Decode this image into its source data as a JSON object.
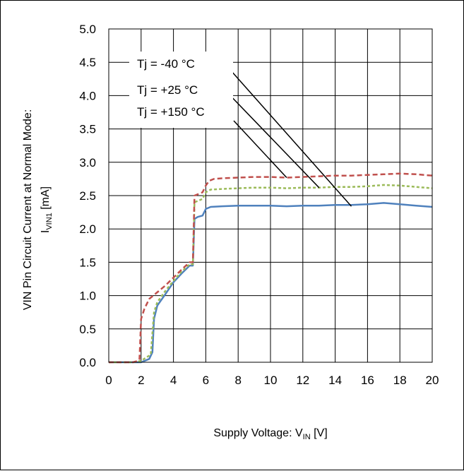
{
  "chart_data": {
    "type": "line",
    "xlabel": "Supply Voltage: V",
    "xlabel_sub": "IN",
    "xlabel_tail": " [V]",
    "ylabel_line1": "VIN Pin Circuit Current at Normal Mode:",
    "ylabel_line2": "I",
    "ylabel_sub": "VIN1",
    "ylabel_tail": " [mA]",
    "xlim": [
      0,
      20
    ],
    "ylim": [
      0.0,
      5.0
    ],
    "x_ticks": [
      "0",
      "2",
      "4",
      "6",
      "8",
      "10",
      "12",
      "14",
      "16",
      "18",
      "20"
    ],
    "y_ticks": [
      "0.0",
      "0.5",
      "1.0",
      "1.5",
      "2.0",
      "2.5",
      "3.0",
      "3.5",
      "4.0",
      "4.5",
      "5.0"
    ],
    "grid": true,
    "legend_placement": "top-left",
    "series": [
      {
        "name": "Tj = -40 °C",
        "color": "#4f81bd",
        "style": "solid",
        "annotation_target": [
          15.0,
          2.34
        ],
        "x": [
          0,
          1.5,
          2.0,
          2.3,
          2.5,
          2.7,
          2.8,
          3.0,
          3.5,
          4.0,
          4.5,
          5.0,
          5.2,
          5.3,
          5.5,
          5.8,
          6.0,
          6.3,
          7,
          8,
          9,
          10,
          11,
          12,
          13,
          14,
          15,
          16,
          17,
          18,
          19,
          20
        ],
        "y": [
          0,
          0,
          0,
          0.03,
          0.05,
          0.15,
          0.65,
          0.85,
          1.02,
          1.2,
          1.33,
          1.45,
          1.45,
          2.15,
          2.18,
          2.2,
          2.3,
          2.33,
          2.34,
          2.35,
          2.35,
          2.35,
          2.34,
          2.35,
          2.35,
          2.36,
          2.36,
          2.37,
          2.39,
          2.37,
          2.35,
          2.33
        ]
      },
      {
        "name": "Tj = +25 °C",
        "color": "#9bbb59",
        "style": "dashed",
        "annotation_target": [
          13.0,
          2.62
        ],
        "x": [
          0,
          1.5,
          2.0,
          2.3,
          2.5,
          2.6,
          2.8,
          3.0,
          3.5,
          4.0,
          4.5,
          5.0,
          5.2,
          5.3,
          5.5,
          5.8,
          6.0,
          6.3,
          7,
          8,
          9,
          10,
          11,
          12,
          13,
          14,
          15,
          16,
          17,
          18,
          19,
          20
        ],
        "y": [
          0,
          0,
          0.02,
          0.07,
          0.1,
          0.12,
          0.75,
          0.9,
          1.07,
          1.22,
          1.36,
          1.47,
          1.47,
          2.4,
          2.42,
          2.45,
          2.55,
          2.59,
          2.6,
          2.61,
          2.62,
          2.62,
          2.61,
          2.62,
          2.62,
          2.63,
          2.63,
          2.64,
          2.66,
          2.65,
          2.63,
          2.61
        ]
      },
      {
        "name": "Tj = +150 °C",
        "color": "#c0504d",
        "style": "dashed",
        "annotation_target": [
          11.0,
          2.77
        ],
        "x": [
          0,
          1.5,
          1.8,
          1.9,
          2.0,
          2.2,
          2.5,
          3.0,
          3.5,
          4.0,
          4.5,
          5.0,
          5.2,
          5.3,
          5.5,
          5.8,
          6.0,
          6.2,
          6.5,
          7,
          8,
          9,
          10,
          11,
          12,
          13,
          14,
          15,
          16,
          17,
          18,
          19,
          20
        ],
        "y": [
          0,
          0,
          0.02,
          0.05,
          0.65,
          0.8,
          0.95,
          1.05,
          1.15,
          1.27,
          1.39,
          1.5,
          1.5,
          2.5,
          2.52,
          2.55,
          2.65,
          2.72,
          2.75,
          2.76,
          2.77,
          2.78,
          2.78,
          2.77,
          2.78,
          2.79,
          2.8,
          2.8,
          2.81,
          2.82,
          2.83,
          2.82,
          2.8
        ]
      }
    ]
  }
}
